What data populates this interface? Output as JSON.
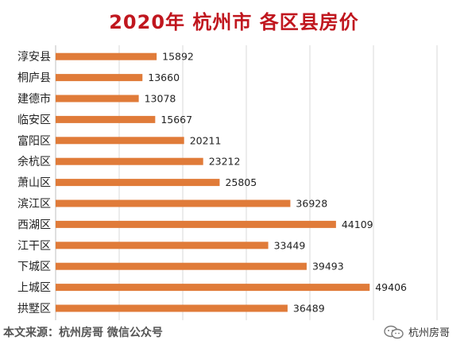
{
  "title": "2020年 杭州市 各区县房价",
  "footer": {
    "source": "本文来源：杭州房哥 微信公众号",
    "brand": "杭州房哥",
    "brand_icon": "wechat-icon"
  },
  "chart_data": {
    "type": "bar",
    "orientation": "horizontal",
    "title": "2020年 杭州市 各区县房价",
    "categories": [
      "淳安县",
      "桐庐县",
      "建德市",
      "临安区",
      "富阳区",
      "余杭区",
      "萧山区",
      "滨江区",
      "西湖区",
      "江干区",
      "下城区",
      "上城区",
      "拱墅区"
    ],
    "values": [
      15892,
      13660,
      13078,
      15667,
      20211,
      23212,
      25805,
      36928,
      44109,
      33449,
      39493,
      49406,
      36489
    ],
    "xlim": [
      0,
      60000
    ],
    "grid": true,
    "bar_color": "#e07b39",
    "data_labels": true
  }
}
